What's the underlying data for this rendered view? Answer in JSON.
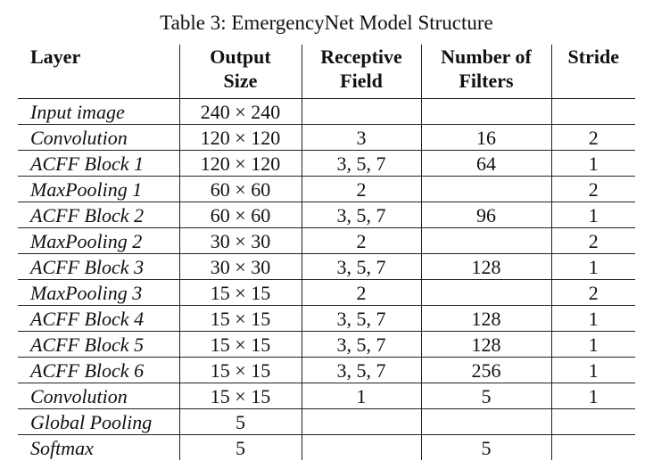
{
  "caption": "Table 3: EmergencyNet Model Structure",
  "headers": {
    "layer": "Layer",
    "output_size": [
      "Output",
      "Size"
    ],
    "receptive_field": [
      "Receptive",
      "Field"
    ],
    "filters": [
      "Number of",
      "Filters"
    ],
    "stride": "Stride"
  },
  "rows": [
    [
      "Input image",
      "240 × 240",
      "",
      "",
      ""
    ],
    [
      "Convolution",
      "120 × 120",
      "3",
      "16",
      "2"
    ],
    [
      "ACFF Block 1",
      "120 × 120",
      "3, 5, 7",
      "64",
      "1"
    ],
    [
      "MaxPooling 1",
      "60 × 60",
      "2",
      "",
      "2"
    ],
    [
      "ACFF Block 2",
      "60 × 60",
      "3, 5, 7",
      "96",
      "1"
    ],
    [
      "MaxPooling 2",
      "30 × 30",
      "2",
      "",
      "2"
    ],
    [
      "ACFF Block 3",
      "30 × 30",
      "3, 5, 7",
      "128",
      "1"
    ],
    [
      "MaxPooling 3",
      "15 × 15",
      "2",
      "",
      "2"
    ],
    [
      "ACFF Block 4",
      "15 × 15",
      "3, 5, 7",
      "128",
      "1"
    ],
    [
      "ACFF Block 5",
      "15 × 15",
      "3, 5, 7",
      "128",
      "1"
    ],
    [
      "ACFF Block 6",
      "15 × 15",
      "3, 5, 7",
      "256",
      "1"
    ],
    [
      "Convolution",
      "15 × 15",
      "1",
      "5",
      "1"
    ],
    [
      "Global Pooling",
      "5",
      "",
      "",
      ""
    ],
    [
      "Softmax",
      "5",
      "",
      "5",
      ""
    ]
  ]
}
